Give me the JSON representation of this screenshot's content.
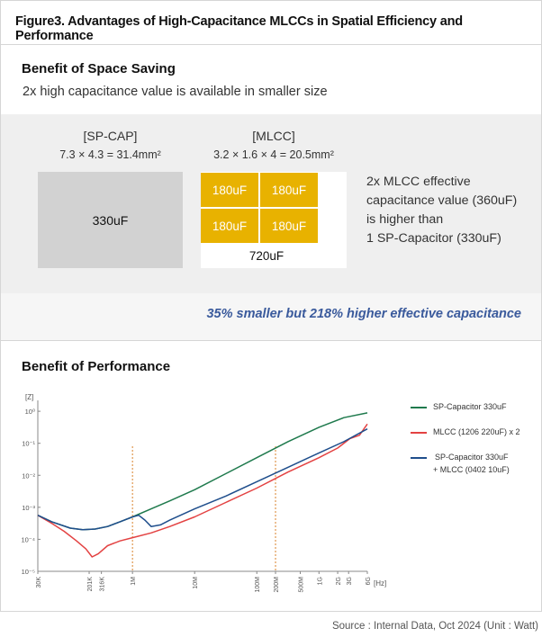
{
  "figure_title": "Figure3. Advantages of High-Capacitance MLCCs in Spatial Efficiency and Performance",
  "space": {
    "title": "Benefit of Space Saving",
    "subtitle": "2x high capacitance value is available in smaller size",
    "sp_cap": {
      "name": "[SP-CAP]",
      "dims": "7.3 × 4.3 = 31.4mm²",
      "value": "330uF"
    },
    "mlcc": {
      "name": "[MLCC]",
      "dims": "3.2 × 1.6 × 4 = 20.5mm²",
      "chips": [
        "180uF",
        "180uF",
        "180uF",
        "180uF"
      ],
      "total": "720uF"
    },
    "description": [
      "2x MLCC effective",
      "capacitance value (360uF)",
      "is higher than",
      "1 SP-Capacitor (330uF)"
    ],
    "highlight": "35% smaller but 218% higher effective capacitance"
  },
  "performance": {
    "title": "Benefit of Performance"
  },
  "source": "Source : Internal Data, Oct 2024 (Unit : Watt)",
  "chart_data": {
    "type": "line",
    "ylabel": "[Z]",
    "xlabel": "[Hz]",
    "y_ticks": [
      "10⁰",
      "10⁻¹",
      "10⁻²",
      "10⁻³",
      "10⁻⁴",
      "10⁻⁵"
    ],
    "y_tick_values": [
      0,
      -1,
      -2,
      -3,
      -4,
      -5
    ],
    "x_ticks": [
      "30K",
      "201K",
      "316K",
      "1M",
      "10M",
      "100M",
      "200M",
      "500M",
      "1G",
      "2G",
      "3G",
      "6G"
    ],
    "x_tick_values": [
      4.477,
      5.303,
      5.5,
      6,
      7,
      8,
      8.301,
      8.699,
      9,
      9.301,
      9.477,
      9.778
    ],
    "ylim_log10": [
      -5,
      0.2
    ],
    "xlim_log10": [
      4.477,
      9.778
    ],
    "reference_lines_log10": [
      6,
      8.301
    ],
    "series": [
      {
        "name": "SP-Capacitor 330uF",
        "color": "#1f7a4d",
        "x_log10": [
          4.477,
          4.7,
          5.0,
          5.2,
          5.4,
          5.6,
          5.8,
          6.0,
          6.3,
          6.6,
          7.0,
          7.5,
          8.0,
          8.5,
          9.0,
          9.4,
          9.778
        ],
        "y_log10": [
          -3.25,
          -3.45,
          -3.65,
          -3.7,
          -3.68,
          -3.6,
          -3.45,
          -3.3,
          -3.05,
          -2.8,
          -2.45,
          -1.95,
          -1.45,
          -0.95,
          -0.5,
          -0.2,
          -0.05
        ]
      },
      {
        "name": "MLCC (1206 220uF) x 2",
        "color": "#e34242",
        "x_log10": [
          4.477,
          4.7,
          4.9,
          5.1,
          5.25,
          5.35,
          5.45,
          5.6,
          5.8,
          6.0,
          6.3,
          6.6,
          7.0,
          7.5,
          8.0,
          8.5,
          9.0,
          9.3,
          9.5,
          9.65,
          9.778
        ],
        "y_log10": [
          -3.25,
          -3.5,
          -3.75,
          -4.05,
          -4.3,
          -4.55,
          -4.45,
          -4.2,
          -4.05,
          -3.95,
          -3.8,
          -3.6,
          -3.3,
          -2.85,
          -2.4,
          -1.9,
          -1.45,
          -1.15,
          -0.85,
          -0.75,
          -0.4
        ]
      },
      {
        "name": "SP-Capacitor 330uF + MLCC (0402 10uF)",
        "color": "#1f4e8c",
        "x_log10": [
          4.477,
          4.7,
          5.0,
          5.2,
          5.4,
          5.6,
          5.8,
          6.0,
          6.1,
          6.2,
          6.3,
          6.45,
          6.6,
          7.0,
          7.5,
          8.0,
          8.5,
          9.0,
          9.4,
          9.778
        ],
        "y_log10": [
          -3.25,
          -3.45,
          -3.65,
          -3.7,
          -3.68,
          -3.6,
          -3.45,
          -3.3,
          -3.25,
          -3.4,
          -3.6,
          -3.55,
          -3.4,
          -3.05,
          -2.65,
          -2.2,
          -1.75,
          -1.3,
          -0.95,
          -0.55
        ]
      }
    ],
    "legend": [
      {
        "label": "SP-Capacitor 330uF",
        "color": "#1f7a4d"
      },
      {
        "label": "MLCC (1206 220uF) x 2",
        "color": "#e34242"
      },
      {
        "label": "SP-Capacitor 330uF",
        "label2": "+ MLCC (0402 10uF)",
        "color": "#1f4e8c"
      }
    ]
  }
}
